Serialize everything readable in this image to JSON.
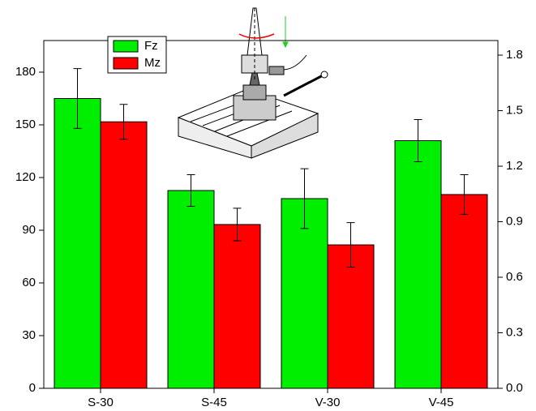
{
  "chart_data": {
    "type": "bar",
    "categories": [
      "S-30",
      "S-45",
      "V-30",
      "V-45"
    ],
    "series": [
      {
        "name": "Fz",
        "color": "#00ee00",
        "values": [
          165,
          112.6,
          108,
          141
        ],
        "errors": [
          17,
          9,
          17,
          12
        ]
      },
      {
        "name": "Mz",
        "color": "#ff0000",
        "axis": "y2",
        "values": [
          1.44,
          0.885,
          0.775,
          1.047
        ],
        "errors": [
          0.094,
          0.088,
          0.12,
          0.107
        ]
      }
    ],
    "ylim": [
      0,
      198
    ],
    "yticks": [
      0,
      30,
      60,
      90,
      120,
      150,
      180
    ],
    "y2lim": [
      0,
      1.879
    ],
    "y2ticks": [
      {
        "value": 0,
        "label": "0.0"
      },
      0.3,
      0.6,
      0.9,
      1.2,
      1.5,
      1.8
    ]
  }
}
